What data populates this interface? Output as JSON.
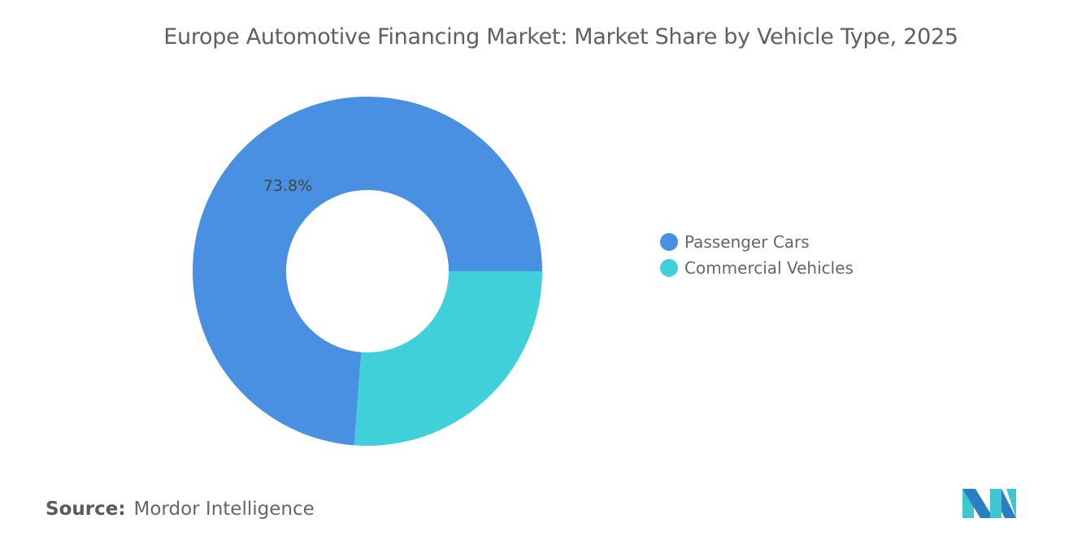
{
  "chart_data": {
    "type": "pie",
    "variant": "donut",
    "title": "Europe Automotive Financing Market: Market Share by Vehicle Type, 2025",
    "categories": [
      "Passenger Cars",
      "Commercial Vehicles"
    ],
    "values": [
      73.8,
      26.2
    ],
    "data_labels": [
      "73.8%",
      ""
    ],
    "colors": [
      "#4a90e2",
      "#3fd0d9"
    ],
    "legend_position": "right"
  },
  "source": {
    "label": "Source:",
    "value": "Mordor Intelligence"
  },
  "logo": {
    "colors": [
      "#2a7fc1",
      "#3fc6d0"
    ]
  }
}
